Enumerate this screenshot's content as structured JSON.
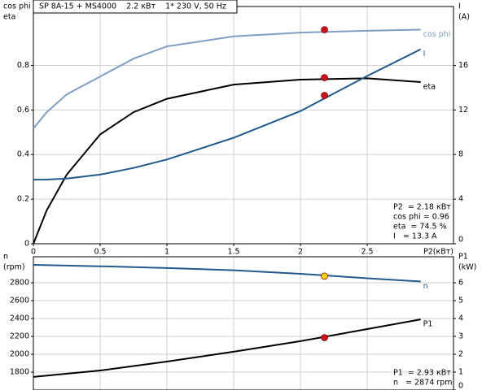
{
  "chart_data": [
    {
      "type": "line",
      "title": "SP 8A-15 + MS4000    2.2 кВт    1* 230 V, 50 Hz",
      "ylabel": [
        "cos phi",
        "eta"
      ],
      "y2label": [
        "I",
        "(A)"
      ],
      "xlabel": "P2(кВт)",
      "x": [
        0,
        0.1,
        0.25,
        0.5,
        0.75,
        1,
        1.5,
        2,
        2.5,
        2.9
      ],
      "xlim": [
        0,
        3.146
      ],
      "xticks": [
        0,
        0.5,
        1,
        1.5,
        2,
        2.5
      ],
      "show_xticks": true,
      "ylim": [
        0,
        1.064
      ],
      "yticks": [
        0,
        0.2,
        0.4,
        0.6,
        0.8
      ],
      "y2lim": [
        0,
        21.28
      ],
      "y2ticks": [
        0,
        4,
        8,
        12,
        16
      ],
      "grid": true,
      "point_x": 2.18,
      "series": [
        {
          "name": "cos phi",
          "color": "#7f9fc2",
          "values": [
            0.517,
            0.59,
            0.67,
            0.75,
            0.83,
            0.885,
            0.93,
            0.947,
            0.955,
            0.96
          ],
          "point": 0.96,
          "point_color": "#c8141e"
        },
        {
          "name": "eta",
          "color": "#000000",
          "values": [
            0,
            0.15,
            0.31,
            0.49,
            0.59,
            0.65,
            0.714,
            0.736,
            0.742,
            0.725
          ],
          "point": 0.745,
          "point_color": "#c8141e"
        },
        {
          "name": "I",
          "color": "#1f5a8a",
          "axis": "y2",
          "values": [
            5.75,
            5.76,
            5.85,
            6.2,
            6.8,
            7.56,
            9.5,
            11.9,
            15.05,
            17.45
          ],
          "point": 13.3,
          "point_color": "#c8141e"
        }
      ],
      "annotations": [
        "P2  = 2.18 кВт",
        "cos phi = 0.96",
        "eta  = 74.5 %",
        "I   = 13.3 A"
      ]
    },
    {
      "type": "line",
      "ylabel": [
        "n",
        "(rpm)"
      ],
      "y2label": [
        "P1",
        "(kW)"
      ],
      "x": [
        0,
        0.5,
        1,
        1.5,
        2,
        2.5,
        2.9
      ],
      "xlim": [
        0,
        3.146
      ],
      "xticks": [
        0,
        0.5,
        1,
        1.5,
        2,
        2.5
      ],
      "show_xticks": false,
      "ylim": [
        1600,
        3091
      ],
      "yticks": [
        1800,
        2000,
        2200,
        2400,
        2600,
        2800
      ],
      "y2lim": [
        0,
        7.455
      ],
      "y2ticks": [
        0,
        1,
        2,
        3,
        4,
        5,
        6
      ],
      "grid": true,
      "point_x": 2.18,
      "series": [
        {
          "name": "n",
          "color": "#1f5a8a",
          "values": [
            3000,
            2985,
            2965,
            2940,
            2900,
            2850,
            2815
          ],
          "point": 2874,
          "point_color": "#f5d10f"
        },
        {
          "name": "P1",
          "color": "#000000",
          "axis": "y2",
          "values": [
            0.73,
            1.09,
            1.59,
            2.14,
            2.73,
            3.41,
            3.95
          ],
          "point": 2.93,
          "point_color": "#c8141e"
        }
      ],
      "annotations": [
        "P1  = 2.93 кВт",
        "n   = 2874 rpm"
      ]
    }
  ]
}
